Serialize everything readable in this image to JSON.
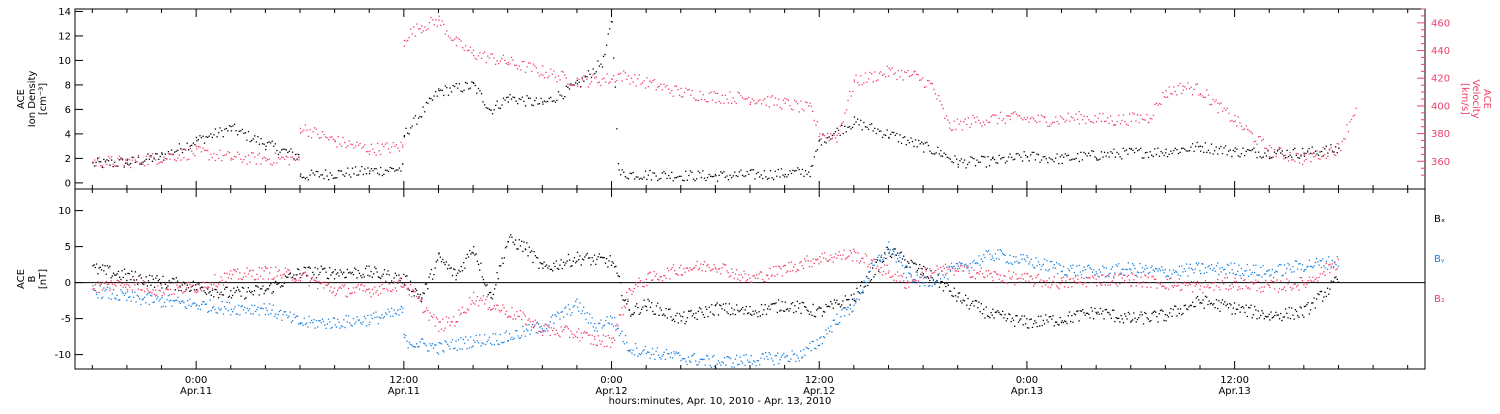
{
  "colors": {
    "black": "#000000",
    "pink": "#f0406a",
    "blue": "#1a82e2"
  },
  "chart_data": [
    {
      "type": "scatter",
      "panel": "top",
      "ylabel_left": [
        "ACE",
        "Ion Density",
        "[cm⁻³]"
      ],
      "ylabel_right": [
        "ACE",
        "Velocity",
        "[km/s]"
      ],
      "ylim_left": [
        -0.5,
        14.2
      ],
      "ylim_right": [
        340,
        470
      ],
      "yticks_left": [
        "0",
        "2",
        "4",
        "6",
        "8",
        "10",
        "12",
        "14"
      ],
      "yticks_right": [
        "360",
        "380",
        "400",
        "420",
        "440",
        "460"
      ],
      "series": [
        {
          "axis": "left",
          "color": "black",
          "points": [
            [
              -6,
              1.6
            ],
            [
              -4,
              1.7
            ],
            [
              -2,
              2.2
            ],
            [
              0,
              3.5
            ],
            [
              2,
              4.5
            ],
            [
              4,
              3.2
            ],
            [
              5.9,
              2.2
            ],
            [
              6,
              0.6
            ],
            [
              8,
              0.8
            ],
            [
              10,
              1.0
            ],
            [
              11.9,
              1.2
            ],
            [
              12,
              4.0
            ],
            [
              14,
              7.5
            ],
            [
              16,
              8.0
            ],
            [
              17,
              6.0
            ],
            [
              18,
              7.0
            ],
            [
              20,
              6.5
            ],
            [
              22,
              8.0
            ],
            [
              23.5,
              10.0
            ],
            [
              24,
              13.3
            ],
            [
              24.4,
              0.8
            ],
            [
              26,
              0.7
            ],
            [
              30,
              0.6
            ],
            [
              34,
              0.8
            ],
            [
              35.5,
              1.0
            ],
            [
              36,
              3.5
            ],
            [
              38,
              5.0
            ],
            [
              40,
              4.0
            ],
            [
              42,
              3.0
            ],
            [
              43,
              2.5
            ],
            [
              44,
              1.7
            ],
            [
              46,
              1.8
            ],
            [
              48,
              2.2
            ],
            [
              50,
              2.0
            ],
            [
              52,
              2.3
            ],
            [
              54,
              2.5
            ],
            [
              56,
              2.6
            ],
            [
              58,
              3.0
            ],
            [
              60,
              2.6
            ],
            [
              62,
              2.5
            ],
            [
              64,
              2.5
            ],
            [
              66,
              2.8
            ]
          ]
        },
        {
          "axis": "right",
          "color": "pink",
          "points": [
            [
              -6,
              360
            ],
            [
              -4,
              360
            ],
            [
              -2,
              363
            ],
            [
              0,
              367
            ],
            [
              2,
              363
            ],
            [
              4,
              362
            ],
            [
              5.9,
              362
            ],
            [
              6,
              385
            ],
            [
              8,
              375
            ],
            [
              10,
              369
            ],
            [
              11.9,
              371
            ],
            [
              12,
              450
            ],
            [
              13,
              458
            ],
            [
              14,
              462
            ],
            [
              15,
              446
            ],
            [
              16,
              438
            ],
            [
              18,
              432
            ],
            [
              20,
              425
            ],
            [
              22,
              418
            ],
            [
              24,
              420
            ],
            [
              24.4,
              423
            ],
            [
              26,
              417
            ],
            [
              28,
              410
            ],
            [
              30,
              407
            ],
            [
              32,
              406
            ],
            [
              34,
              402
            ],
            [
              35.5,
              398
            ],
            [
              36,
              380
            ],
            [
              37,
              378
            ],
            [
              38,
              418
            ],
            [
              40,
              425
            ],
            [
              41.5,
              422
            ],
            [
              42.5,
              415
            ],
            [
              43.5,
              385
            ],
            [
              45,
              390
            ],
            [
              47,
              392
            ],
            [
              49,
              390
            ],
            [
              51,
              392
            ],
            [
              53,
              390
            ],
            [
              55,
              392
            ],
            [
              56,
              410
            ],
            [
              57,
              414
            ],
            [
              58,
              412
            ],
            [
              59,
              400
            ],
            [
              60,
              390
            ],
            [
              62,
              368
            ],
            [
              64,
              362
            ],
            [
              66,
              370
            ],
            [
              67,
              400
            ]
          ]
        }
      ]
    },
    {
      "type": "scatter",
      "panel": "bottom",
      "ylabel_left": [
        "ACE",
        "B",
        "[nT]"
      ],
      "ylim": [
        -12,
        13
      ],
      "yticks": [
        "-10",
        "-5",
        "0",
        "5",
        "10"
      ],
      "legend": [
        "Bₓ",
        "Bᵧ",
        "B₂"
      ],
      "legend_placement": "right",
      "series": [
        {
          "name": "Bₓ",
          "color": "black",
          "points": [
            [
              -6,
              2.0
            ],
            [
              -3,
              0.5
            ],
            [
              0,
              -0.5
            ],
            [
              2,
              -1.5
            ],
            [
              4,
              -1.0
            ],
            [
              6,
              1.5
            ],
            [
              8,
              1.5
            ],
            [
              10,
              1.5
            ],
            [
              12,
              0.5
            ],
            [
              13,
              -2.0
            ],
            [
              14,
              3.5
            ],
            [
              15,
              1.0
            ],
            [
              16,
              5.0
            ],
            [
              17,
              -2.0
            ],
            [
              18,
              6.0
            ],
            [
              19,
              5.0
            ],
            [
              20,
              2.0
            ],
            [
              22,
              3.5
            ],
            [
              24,
              3.0
            ],
            [
              25,
              -4.0
            ],
            [
              26,
              -3.0
            ],
            [
              28,
              -5.0
            ],
            [
              30,
              -3.5
            ],
            [
              32,
              -4.0
            ],
            [
              34,
              -3.0
            ],
            [
              36,
              -4.0
            ],
            [
              38,
              -2.0
            ],
            [
              40,
              4.5
            ],
            [
              41,
              3.0
            ],
            [
              42,
              1.5
            ],
            [
              43,
              0.0
            ],
            [
              44,
              -2.0
            ],
            [
              46,
              -4.5
            ],
            [
              48,
              -5.5
            ],
            [
              50,
              -5.0
            ],
            [
              52,
              -4.0
            ],
            [
              54,
              -5.0
            ],
            [
              56,
              -4.5
            ],
            [
              58,
              -2.5
            ],
            [
              60,
              -3.5
            ],
            [
              62,
              -4.5
            ],
            [
              64,
              -4.0
            ],
            [
              66,
              0.5
            ]
          ]
        },
        {
          "name": "Bᵧ",
          "color": "blue",
          "points": [
            [
              -6,
              -1.0
            ],
            [
              -4,
              -2.0
            ],
            [
              -2,
              -2.5
            ],
            [
              0,
              -3.0
            ],
            [
              2,
              -3.5
            ],
            [
              4,
              -3.5
            ],
            [
              6,
              -5.5
            ],
            [
              8,
              -5.5
            ],
            [
              10,
              -5.0
            ],
            [
              11.9,
              -4.0
            ],
            [
              12,
              -8.0
            ],
            [
              14,
              -9.0
            ],
            [
              16,
              -8.0
            ],
            [
              18,
              -7.5
            ],
            [
              20,
              -6.0
            ],
            [
              22,
              -3.0
            ],
            [
              23,
              -6.0
            ],
            [
              24,
              -5.0
            ],
            [
              25,
              -9.0
            ],
            [
              27,
              -10.0
            ],
            [
              30,
              -11.0
            ],
            [
              33,
              -10.5
            ],
            [
              35,
              -10.0
            ],
            [
              36,
              -8.0
            ],
            [
              37,
              -5.0
            ],
            [
              38,
              -3.0
            ],
            [
              39,
              2.0
            ],
            [
              40,
              5.0
            ],
            [
              41,
              1.5
            ],
            [
              42,
              0.0
            ],
            [
              44,
              2.0
            ],
            [
              46,
              4.0
            ],
            [
              48,
              3.0
            ],
            [
              50,
              2.0
            ],
            [
              52,
              1.5
            ],
            [
              54,
              2.0
            ],
            [
              56,
              1.5
            ],
            [
              58,
              2.0
            ],
            [
              60,
              2.0
            ],
            [
              62,
              1.5
            ],
            [
              64,
              2.5
            ],
            [
              66,
              3.0
            ]
          ]
        },
        {
          "name": "B₂",
          "color": "pink",
          "points": [
            [
              -6,
              -0.5
            ],
            [
              -4,
              0.0
            ],
            [
              -2,
              -1.0
            ],
            [
              0,
              -0.5
            ],
            [
              2,
              1.0
            ],
            [
              4,
              1.5
            ],
            [
              6,
              1.0
            ],
            [
              8,
              -1.0
            ],
            [
              10,
              -1.0
            ],
            [
              12,
              0.0
            ],
            [
              13,
              -3.0
            ],
            [
              14,
              -6.0
            ],
            [
              15,
              -5.0
            ],
            [
              16,
              -2.0
            ],
            [
              18,
              -4.0
            ],
            [
              19,
              -5.0
            ],
            [
              20,
              -6.5
            ],
            [
              22,
              -7.0
            ],
            [
              23,
              -8.0
            ],
            [
              24,
              -8.0
            ],
            [
              25,
              -1.0
            ],
            [
              26,
              0.5
            ],
            [
              28,
              2.0
            ],
            [
              30,
              2.5
            ],
            [
              32,
              0.5
            ],
            [
              34,
              2.0
            ],
            [
              36,
              3.5
            ],
            [
              38,
              4.0
            ],
            [
              40,
              1.5
            ],
            [
              41,
              0.0
            ],
            [
              42,
              1.5
            ],
            [
              44,
              2.0
            ],
            [
              46,
              1.0
            ],
            [
              48,
              0.5
            ],
            [
              50,
              0.0
            ],
            [
              52,
              0.5
            ],
            [
              54,
              0.5
            ],
            [
              56,
              0.0
            ],
            [
              58,
              -0.5
            ],
            [
              60,
              0.0
            ],
            [
              62,
              -0.5
            ],
            [
              64,
              0.0
            ],
            [
              66,
              3.0
            ]
          ]
        }
      ]
    }
  ],
  "x_axis": {
    "range_hours": [
      -7,
      71
    ],
    "ticks": [
      {
        "hours": 0,
        "time": "0:00",
        "date": "Apr.11"
      },
      {
        "hours": 12,
        "time": "12:00",
        "date": "Apr.11"
      },
      {
        "hours": 24,
        "time": "0:00",
        "date": "Apr.12"
      },
      {
        "hours": 36,
        "time": "12:00",
        "date": "Apr.12"
      },
      {
        "hours": 48,
        "time": "0:00",
        "date": "Apr.13"
      },
      {
        "hours": 60,
        "time": "12:00",
        "date": "Apr.13"
      }
    ],
    "xlabel": "hours:minutes, Apr. 10, 2010 - Apr. 13, 2010"
  }
}
